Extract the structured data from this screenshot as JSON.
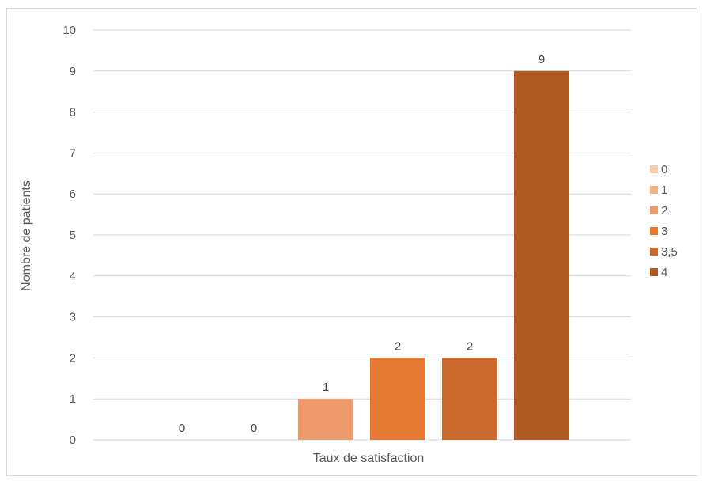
{
  "chart_data": {
    "type": "bar",
    "title": "",
    "xlabel": "Taux de satisfaction",
    "ylabel": "Nombre de patients",
    "ylim": [
      0,
      10
    ],
    "y_ticks": [
      "0",
      "1",
      "2",
      "3",
      "4",
      "5",
      "6",
      "7",
      "8",
      "9",
      "10"
    ],
    "grid": true,
    "legend_position": "right",
    "series": [
      {
        "name": "0",
        "values": [
          0
        ],
        "color": "#f8cbad",
        "label": "0"
      },
      {
        "name": "1",
        "values": [
          0
        ],
        "color": "#f4b183",
        "label": "0"
      },
      {
        "name": "2",
        "values": [
          1
        ],
        "color": "#ef9a6c",
        "label": "1"
      },
      {
        "name": "3",
        "values": [
          2
        ],
        "color": "#e67a32",
        "label": "2"
      },
      {
        "name": "3,5",
        "values": [
          2
        ],
        "color": "#cb6a2b",
        "label": "2"
      },
      {
        "name": "4",
        "values": [
          9
        ],
        "color": "#b05a21",
        "label": "9"
      }
    ]
  }
}
